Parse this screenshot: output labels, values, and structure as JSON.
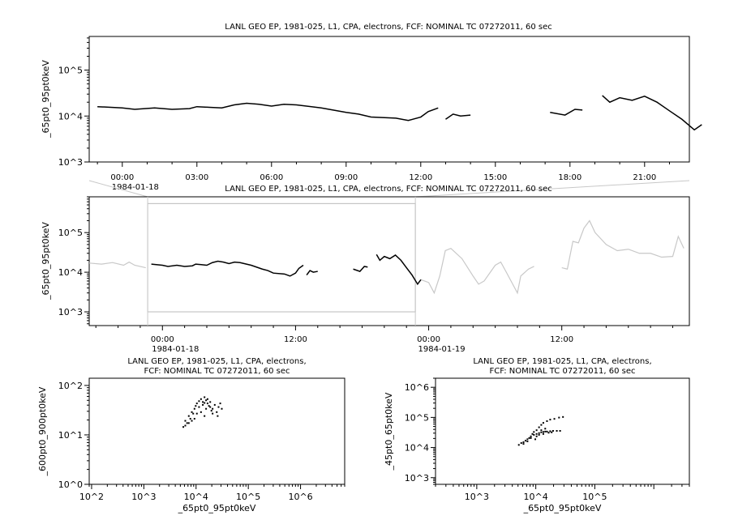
{
  "chart_data": [
    {
      "type": "line",
      "title": "LANL GEO EP, 1981-025, L1, CPA, electrons, FCF: NOMINAL TC 07272011, 60 sec",
      "ylabel": "_65pt0_95pt0keV",
      "yscale": "log",
      "ylim": [
        1000,
        540000
      ],
      "xlim_hours": [
        -1.33,
        22.8
      ],
      "x_tick_labels": [
        "00:00",
        "03:00",
        "06:00",
        "09:00",
        "12:00",
        "15:00",
        "18:00",
        "21:00"
      ],
      "x_date_label": "1984-01-18",
      "y_tick_labels": [
        "10^3",
        "10^4",
        "10^5"
      ],
      "series": [
        {
          "color": "#000000",
          "segments": [
            [
              [
                -1,
                16000
              ],
              [
                0,
                15000
              ],
              [
                0.5,
                14000
              ],
              [
                1.3,
                15000
              ],
              [
                2,
                14000
              ],
              [
                2.7,
                14500
              ],
              [
                3,
                16000
              ],
              [
                3.5,
                15500
              ],
              [
                4,
                15000
              ],
              [
                4.5,
                17500
              ],
              [
                5,
                19000
              ],
              [
                5.5,
                18000
              ],
              [
                6,
                16500
              ],
              [
                6.5,
                18000
              ],
              [
                7,
                17500
              ],
              [
                8,
                15000
              ],
              [
                9,
                12000
              ],
              [
                9.5,
                11000
              ],
              [
                10,
                9500
              ],
              [
                11,
                9000
              ],
              [
                11.5,
                8000
              ],
              [
                12,
                9500
              ],
              [
                12.3,
                12500
              ],
              [
                12.7,
                15000
              ]
            ],
            [
              [
                13,
                8500
              ],
              [
                13.3,
                11000
              ],
              [
                13.6,
                10000
              ],
              [
                14,
                10500
              ]
            ],
            [
              [
                17.2,
                12000
              ],
              [
                17.8,
                10500
              ],
              [
                18.2,
                14000
              ],
              [
                18.5,
                13500
              ]
            ],
            [
              [
                19.3,
                28000
              ],
              [
                19.6,
                20000
              ],
              [
                20,
                25000
              ],
              [
                20.5,
                22000
              ],
              [
                21,
                27000
              ],
              [
                21.5,
                20000
              ],
              [
                22,
                13000
              ],
              [
                22.5,
                8500
              ],
              [
                23,
                5000
              ],
              [
                23.3,
                6500
              ]
            ]
          ]
        }
      ]
    },
    {
      "type": "line",
      "title": "LANL GEO EP, 1981-025, L1, CPA, electrons, FCF: NOMINAL TC 07272011, 60 sec",
      "ylabel": "_65pt0_95pt0keV",
      "yscale": "log",
      "ylim": [
        450,
        800000
      ],
      "xlim_hours": [
        -6.6,
        47.5
      ],
      "x_tick_labels": [
        "00:00",
        "12:00",
        "00:00",
        "12:00"
      ],
      "x_date_labels": [
        "1984-01-18",
        "1984-01-19"
      ],
      "y_tick_labels": [
        "10^3",
        "10^4",
        "10^5"
      ],
      "zoom_box": {
        "x_hours": [
          -1.33,
          22.8
        ],
        "y": [
          1000,
          540000
        ]
      },
      "series": [
        {
          "color": "#c8c8c8",
          "segments": [
            [
              [
                -6.6,
                17000
              ],
              [
                -5.5,
                16000
              ],
              [
                -4.5,
                17500
              ],
              [
                -3.5,
                15000
              ],
              [
                -3,
                18000
              ],
              [
                -2.5,
                15000
              ],
              [
                -1.5,
                13000
              ]
            ],
            [
              [
                23.3,
                6500
              ],
              [
                24,
                5500
              ],
              [
                24.5,
                3000
              ],
              [
                25,
                8000
              ],
              [
                25.5,
                35000
              ],
              [
                26,
                40000
              ],
              [
                27,
                22000
              ],
              [
                28,
                8000
              ],
              [
                28.5,
                5000
              ],
              [
                29,
                6000
              ],
              [
                30,
                15000
              ],
              [
                30.5,
                18000
              ],
              [
                31,
                10000
              ],
              [
                32,
                3000
              ],
              [
                32.3,
                8000
              ],
              [
                33,
                12000
              ],
              [
                33.5,
                14000
              ]
            ],
            [
              [
                36,
                13000
              ],
              [
                36.5,
                12000
              ],
              [
                37,
                60000
              ],
              [
                37.5,
                55000
              ],
              [
                38,
                130000
              ],
              [
                38.5,
                200000
              ],
              [
                39,
                100000
              ],
              [
                40,
                50000
              ],
              [
                41,
                35000
              ],
              [
                42,
                38000
              ],
              [
                43,
                30000
              ],
              [
                44,
                30000
              ],
              [
                45,
                24000
              ],
              [
                46,
                25000
              ],
              [
                46.5,
                80000
              ],
              [
                47,
                40000
              ]
            ]
          ]
        },
        {
          "color": "#000000",
          "ref": "same as panel 1"
        }
      ]
    },
    {
      "type": "scatter",
      "title": "LANL GEO EP, 1981-025, L1, CPA, electrons, FCF: NOMINAL TC 07272011, 60 sec",
      "xlabel": "_65pt0_95pt0keV",
      "ylabel": "_600pt0_900pt0keV",
      "xscale": "log",
      "yscale": "log",
      "xlim": [
        90,
        7000000
      ],
      "ylim": [
        1,
        140
      ],
      "x_tick_labels": [
        "10^2",
        "10^3",
        "10^4",
        "10^5",
        "10^6"
      ],
      "y_tick_labels": [
        "10^0",
        "10^1",
        "10^2"
      ],
      "points": [
        [
          5500,
          15
        ],
        [
          6000,
          20
        ],
        [
          6500,
          18
        ],
        [
          7000,
          25
        ],
        [
          7500,
          22
        ],
        [
          8000,
          30
        ],
        [
          8500,
          28
        ],
        [
          9000,
          35
        ],
        [
          9500,
          40
        ],
        [
          10000,
          45
        ],
        [
          11000,
          50
        ],
        [
          12000,
          55
        ],
        [
          13000,
          48
        ],
        [
          14000,
          60
        ],
        [
          15000,
          52
        ],
        [
          16000,
          45
        ],
        [
          17000,
          40
        ],
        [
          18000,
          38
        ],
        [
          20000,
          35
        ],
        [
          22000,
          42
        ],
        [
          24000,
          30
        ],
        [
          26000,
          38
        ],
        [
          28000,
          45
        ],
        [
          30000,
          35
        ],
        [
          12000,
          30
        ],
        [
          14000,
          25
        ],
        [
          10000,
          28
        ],
        [
          9000,
          22
        ],
        [
          11000,
          38
        ],
        [
          15000,
          35
        ],
        [
          18000,
          48
        ],
        [
          13000,
          42
        ],
        [
          16000,
          55
        ],
        [
          20000,
          28
        ],
        [
          7000,
          18
        ],
        [
          8000,
          20
        ],
        [
          6000,
          16
        ],
        [
          19000,
          32
        ],
        [
          25000,
          25
        ],
        [
          14000,
          46
        ]
      ]
    },
    {
      "type": "scatter",
      "title": "LANL GEO EP, 1981-025, L1, CPA, electrons, FCF: NOMINAL TC 07272011, 60 sec",
      "xlabel": "_65pt0_95pt0keV",
      "ylabel": "_45pt0_65pt0keV",
      "xscale": "log",
      "yscale": "log",
      "xlim": [
        200,
        4000000
      ],
      "ylim": [
        600,
        2000000
      ],
      "x_tick_labels": [
        "10^3",
        "10^4",
        "10^5"
      ],
      "y_tick_labels": [
        "10^3",
        "10^4",
        "10^5",
        "10^6"
      ],
      "points": [
        [
          5000,
          13000
        ],
        [
          5500,
          15000
        ],
        [
          6000,
          14000
        ],
        [
          6500,
          18000
        ],
        [
          7000,
          20000
        ],
        [
          7500,
          22000
        ],
        [
          8000,
          25000
        ],
        [
          8500,
          30000
        ],
        [
          9000,
          35000
        ],
        [
          10000,
          40000
        ],
        [
          11000,
          50000
        ],
        [
          12000,
          60000
        ],
        [
          13000,
          70000
        ],
        [
          15000,
          80000
        ],
        [
          17000,
          90000
        ],
        [
          20000,
          95000
        ],
        [
          24000,
          105000
        ],
        [
          28000,
          110000
        ],
        [
          10000,
          30000
        ],
        [
          11000,
          32000
        ],
        [
          12000,
          34000
        ],
        [
          13000,
          35000
        ],
        [
          14000,
          36000
        ],
        [
          15000,
          36000
        ],
        [
          17000,
          37000
        ],
        [
          19000,
          38000
        ],
        [
          22000,
          38000
        ],
        [
          25000,
          38000
        ],
        [
          9000,
          28000
        ],
        [
          8000,
          22000
        ],
        [
          7000,
          17000
        ],
        [
          6000,
          16000
        ],
        [
          12000,
          40000
        ],
        [
          14000,
          45000
        ],
        [
          10000,
          25000
        ],
        [
          11000,
          28000
        ],
        [
          16000,
          33000
        ],
        [
          13000,
          30000
        ],
        [
          18000,
          34000
        ],
        [
          9500,
          20000
        ]
      ]
    }
  ]
}
